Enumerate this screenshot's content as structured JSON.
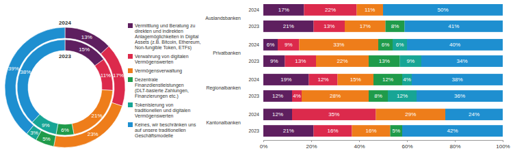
{
  "chart_data": [
    {
      "type": "pie",
      "categories": [
        "Vermittlung und Beratung zu direkten und indirekten Anlagemöglichkeiten in Digital Assets (z.B. Bitcoin, Ethereum, Non-fungible Token, ETFs)",
        "Verwahrung von digitalen Vermögenswerten",
        "Vermögensverwaltung",
        "Dezentrale Finanzdienstleistungen (DLT-basierte Zahlungen, Finanzierungen etc.)",
        "Tokenisierung von traditionellen und digitalen Vermögenswerten",
        "Keines, wir beschränken uns auf unsere traditionellen Geschäftsmodelle"
      ],
      "colors": [
        "#5e1f5f",
        "#dc2a4c",
        "#ee7d1a",
        "#1f9b4a",
        "#17a595",
        "#1e8fd0"
      ],
      "legend": "right",
      "data_labels": true,
      "series": [
        {
          "name": "2024",
          "values": [
            13,
            17,
            23,
            5,
            3,
            39
          ],
          "value_labels": [
            "13%",
            "17%",
            "23%",
            "5%",
            "3%",
            "39%"
          ]
        },
        {
          "name": "2023",
          "values": [
            15,
            11,
            21,
            6,
            9,
            38
          ],
          "value_labels": [
            "15%",
            "11%",
            "21%",
            "6%",
            "9%",
            "38%"
          ]
        }
      ]
    },
    {
      "type": "bar",
      "orientation": "horizontal",
      "stacked": true,
      "data_labels": true,
      "grid": false,
      "group_labels": [
        "Auslandsbanken",
        "Privatbanken",
        "Regionalbanken",
        "Kantonalbanken"
      ],
      "categories": [
        "2024",
        "2023",
        "2024",
        "2023",
        "2024",
        "2023",
        "2024",
        "2023"
      ],
      "xlim": [
        0,
        100
      ],
      "xticks": [
        {
          "value": 0,
          "label": "0%"
        },
        {
          "value": 20,
          "label": "20%"
        },
        {
          "value": 40,
          "label": "40%"
        },
        {
          "value": 60,
          "label": "60%"
        },
        {
          "value": 80,
          "label": "80%"
        },
        {
          "value": 100,
          "label": "100%"
        }
      ],
      "series": [
        {
          "color": "#5e1f5f",
          "values": [
            17,
            21,
            6,
            9,
            19,
            12,
            12,
            21
          ],
          "value_labels": [
            "17%",
            "21%",
            "6%",
            "9%",
            "19%",
            "12%",
            "12%",
            "21%"
          ]
        },
        {
          "color": "#dc2a4c",
          "values": [
            22,
            13,
            9,
            13,
            12,
            4,
            35,
            16
          ],
          "value_labels": [
            "22%",
            "13%",
            "9%",
            "13%",
            "12%",
            "4%",
            "35%",
            "16%"
          ]
        },
        {
          "color": "#ee7d1a",
          "values": [
            11,
            17,
            33,
            22,
            15,
            28,
            29,
            16
          ],
          "value_labels": [
            "11%",
            "17%",
            "33%",
            "22%",
            "15%",
            "28%",
            "29%",
            "16%"
          ]
        },
        {
          "color": "#1f9b4a",
          "values": [
            null,
            8,
            6,
            13,
            12,
            8,
            null,
            5
          ],
          "value_labels": [
            null,
            "8%",
            "6%",
            "13%",
            "12%",
            "8%",
            null,
            "5%"
          ]
        },
        {
          "color": "#17a595",
          "values": [
            null,
            null,
            6,
            9,
            4,
            12,
            null,
            null
          ],
          "value_labels": [
            null,
            null,
            "6%",
            "9%",
            "4%",
            "12%",
            null,
            null
          ]
        },
        {
          "color": "#1e8fd0",
          "values": [
            50,
            41,
            40,
            34,
            38,
            36,
            24,
            42
          ],
          "value_labels": [
            "50%",
            "41%",
            "40%",
            "34%",
            "38%",
            "36%",
            "24%",
            "42%"
          ]
        }
      ]
    }
  ]
}
